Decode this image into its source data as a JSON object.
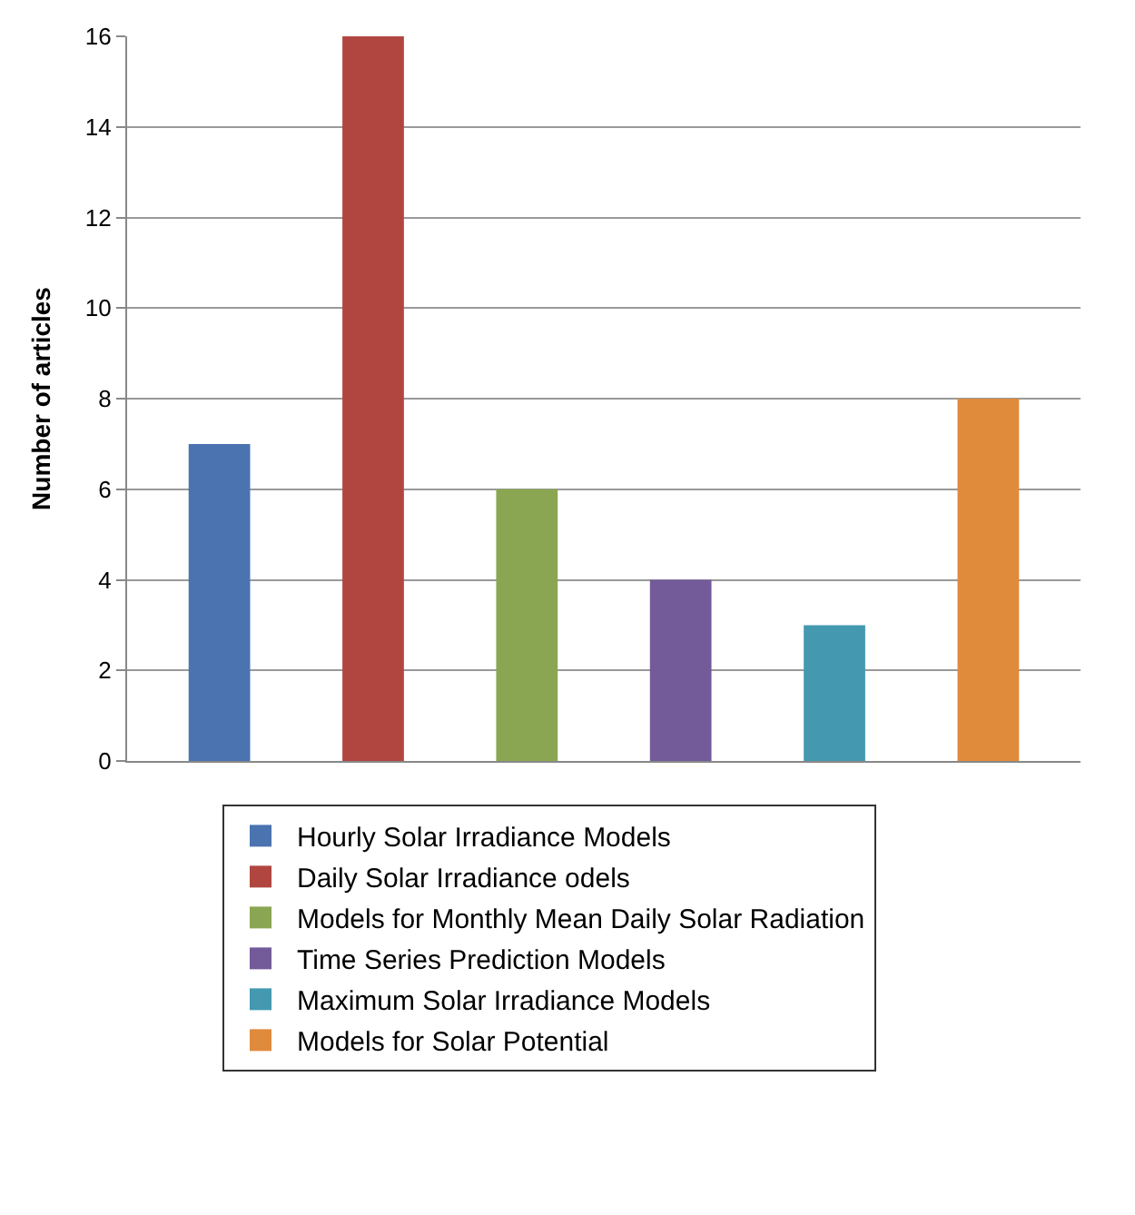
{
  "chart_data": {
    "type": "bar",
    "ylabel": "Number of articles",
    "categories": [
      null,
      null,
      null,
      null,
      null,
      null
    ],
    "series": [
      {
        "name": "Hourly Solar Irradiance Models",
        "color": "#4a73b0",
        "values": [
          7,
          null,
          null,
          null,
          null,
          null
        ]
      },
      {
        "name": "Daily Solar Irradiance odels",
        "color": "#b0463f",
        "values": [
          null,
          16,
          null,
          null,
          null,
          null
        ]
      },
      {
        "name": "Models for Monthly Mean Daily Solar Radiation",
        "color": "#8aa652",
        "values": [
          null,
          null,
          6,
          null,
          null,
          null
        ]
      },
      {
        "name": "Time Series Prediction Models",
        "color": "#735a99",
        "values": [
          null,
          null,
          null,
          4,
          null,
          null
        ]
      },
      {
        "name": "Maximum Solar Irradiance Models",
        "color": "#4499b0",
        "values": [
          null,
          null,
          null,
          null,
          3,
          null
        ]
      },
      {
        "name": "Models for Solar Potential",
        "color": "#e08a3c",
        "values": [
          null,
          null,
          null,
          null,
          null,
          8
        ]
      }
    ],
    "ylim": [
      0,
      16
    ],
    "yticks": [
      0,
      2,
      4,
      6,
      8,
      10,
      12,
      14,
      16
    ],
    "grid": "y",
    "legend": "bottom",
    "tick_labels": "y"
  }
}
